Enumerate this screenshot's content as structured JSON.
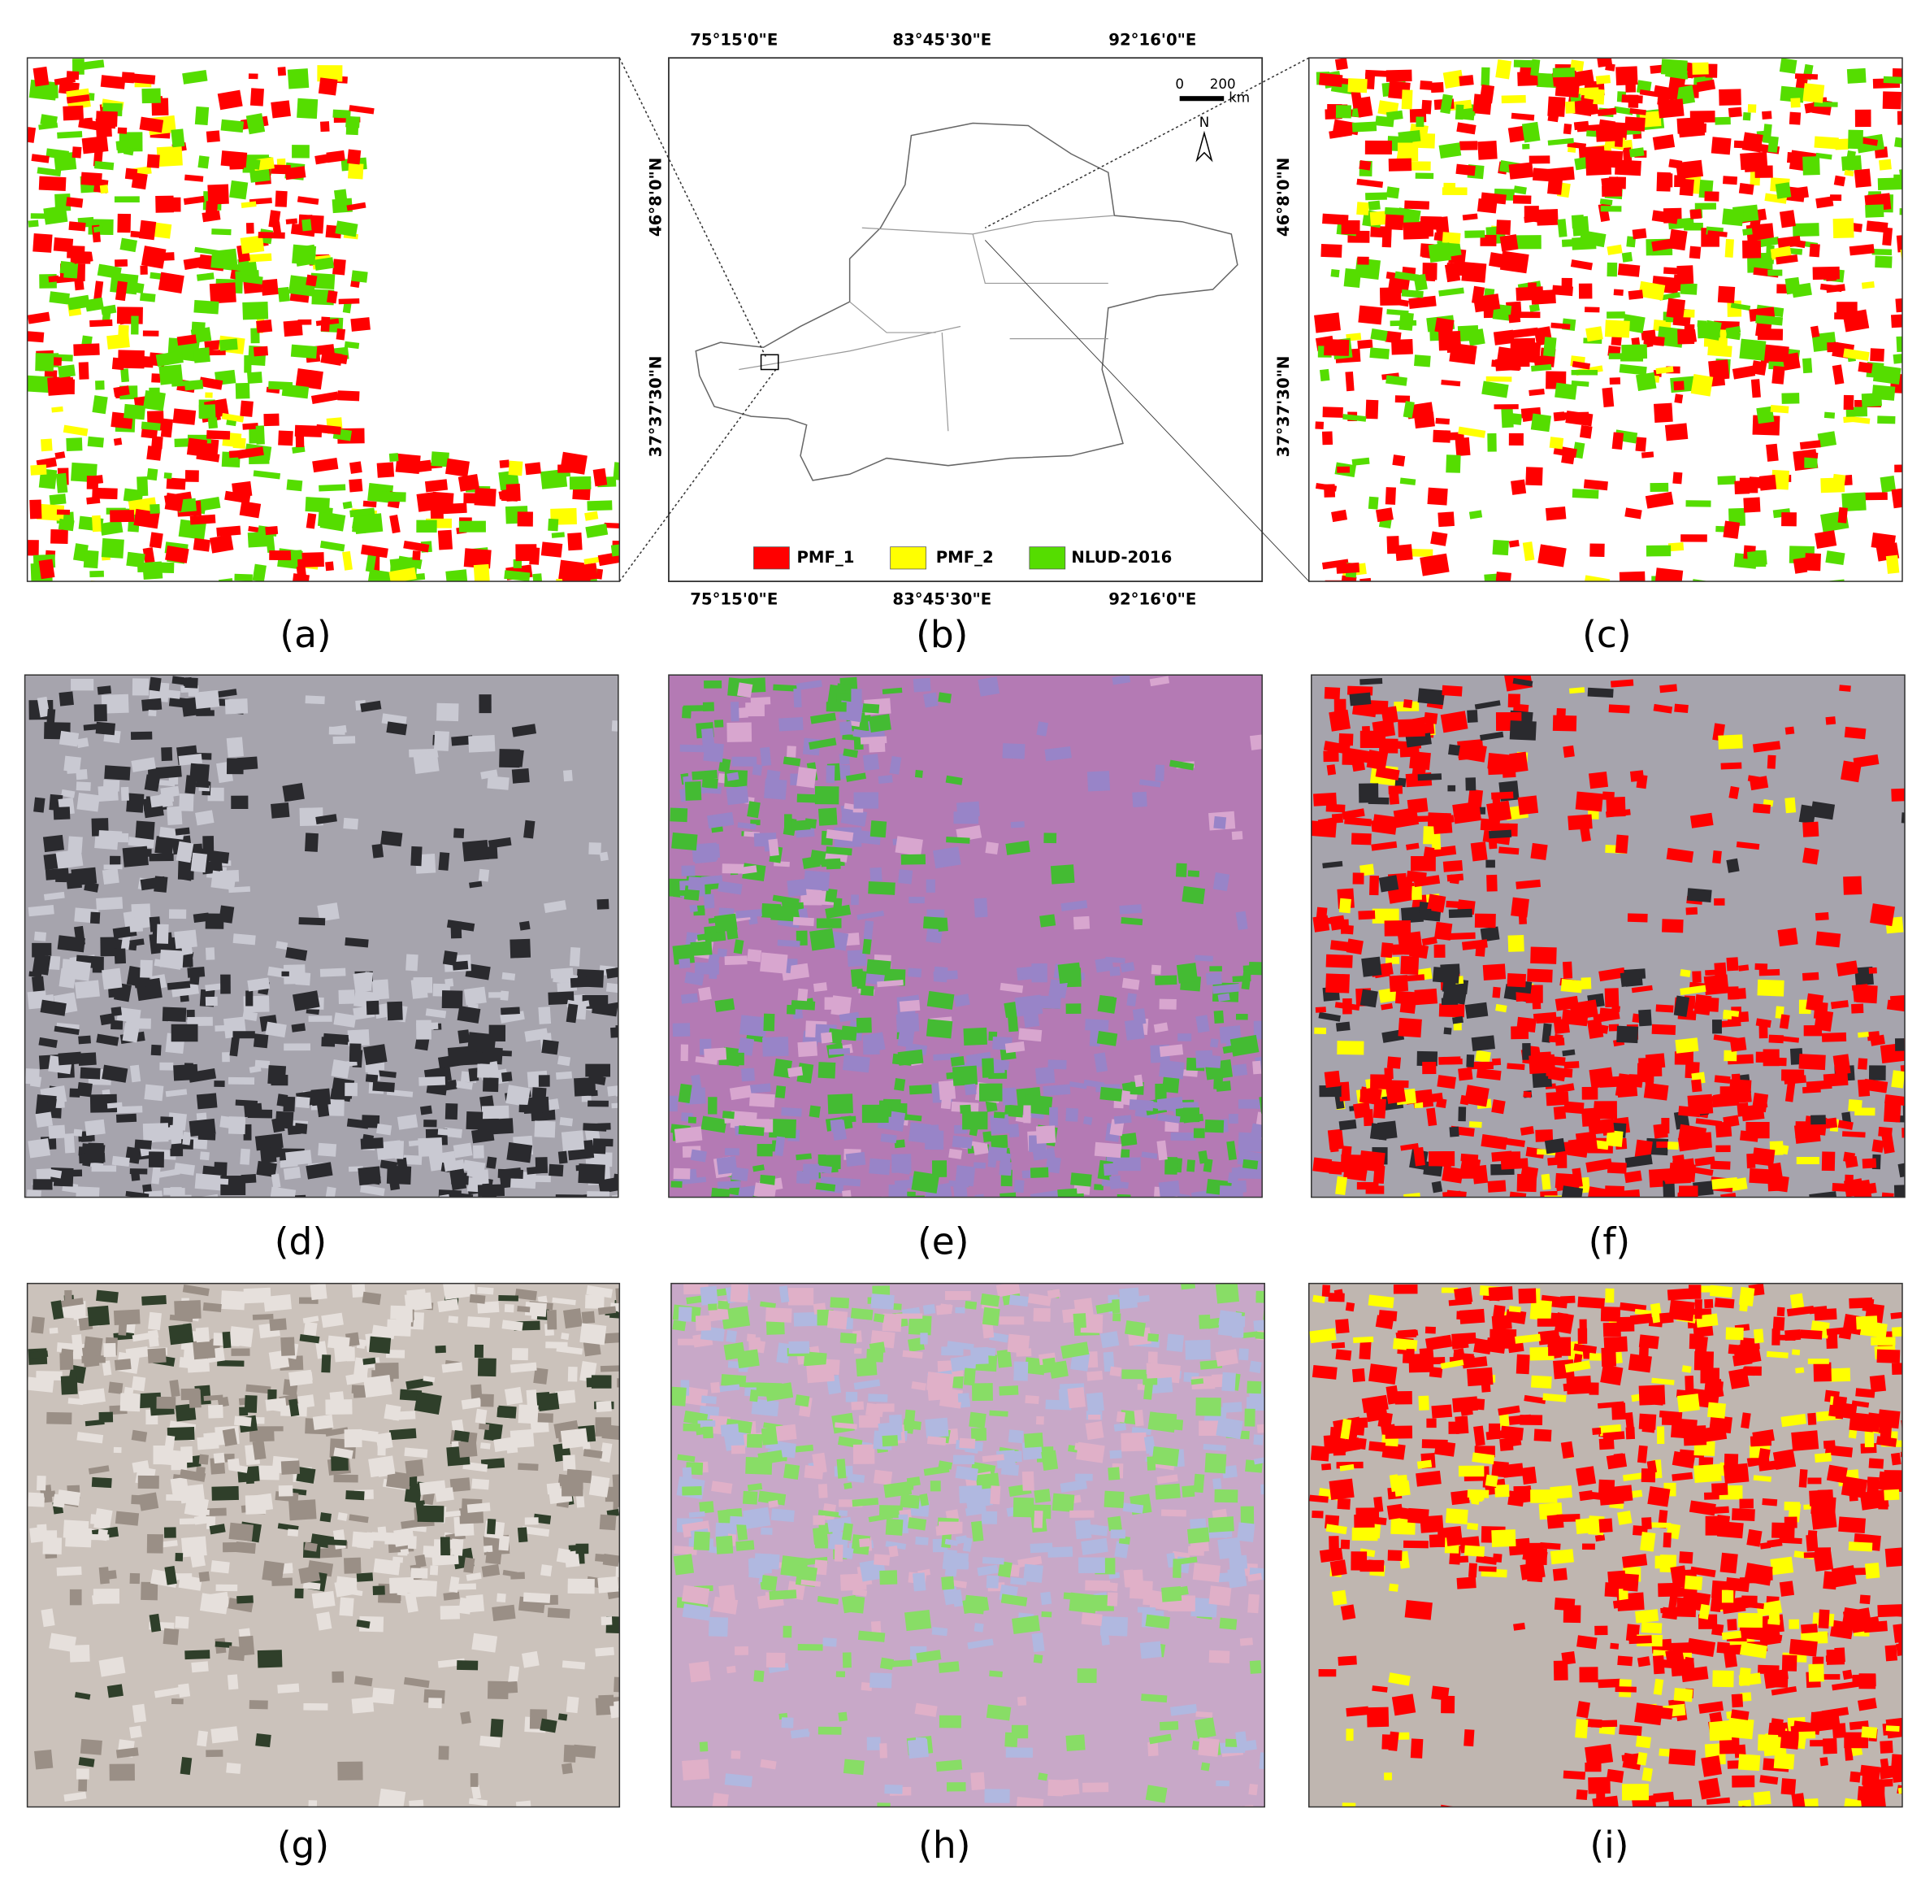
{
  "panels": [
    {
      "label": "(a)"
    },
    {
      "label": "(b)"
    },
    {
      "label": "(c)"
    },
    {
      "label": "(d)"
    },
    {
      "label": "(e)"
    },
    {
      "label": "(f)"
    },
    {
      "label": "(g)"
    },
    {
      "label": "(h)"
    },
    {
      "label": "(i)"
    }
  ],
  "overview_map": {
    "longitude_labels": [
      "75°15'0\"E",
      "83°45'30\"E",
      "92°16'0\"E"
    ],
    "latitude_labels": [
      "46°8'0\"N",
      "37°37'30\"N"
    ],
    "scale_bar": {
      "start": "0",
      "end": "200",
      "unit": "km"
    },
    "north": "N",
    "legend": [
      {
        "name": "PMF_1",
        "color": "#ff0000"
      },
      {
        "name": "PMF_2",
        "color": "#ffff00"
      },
      {
        "name": "NLUD-2016",
        "color": "#55dd00"
      }
    ]
  }
}
